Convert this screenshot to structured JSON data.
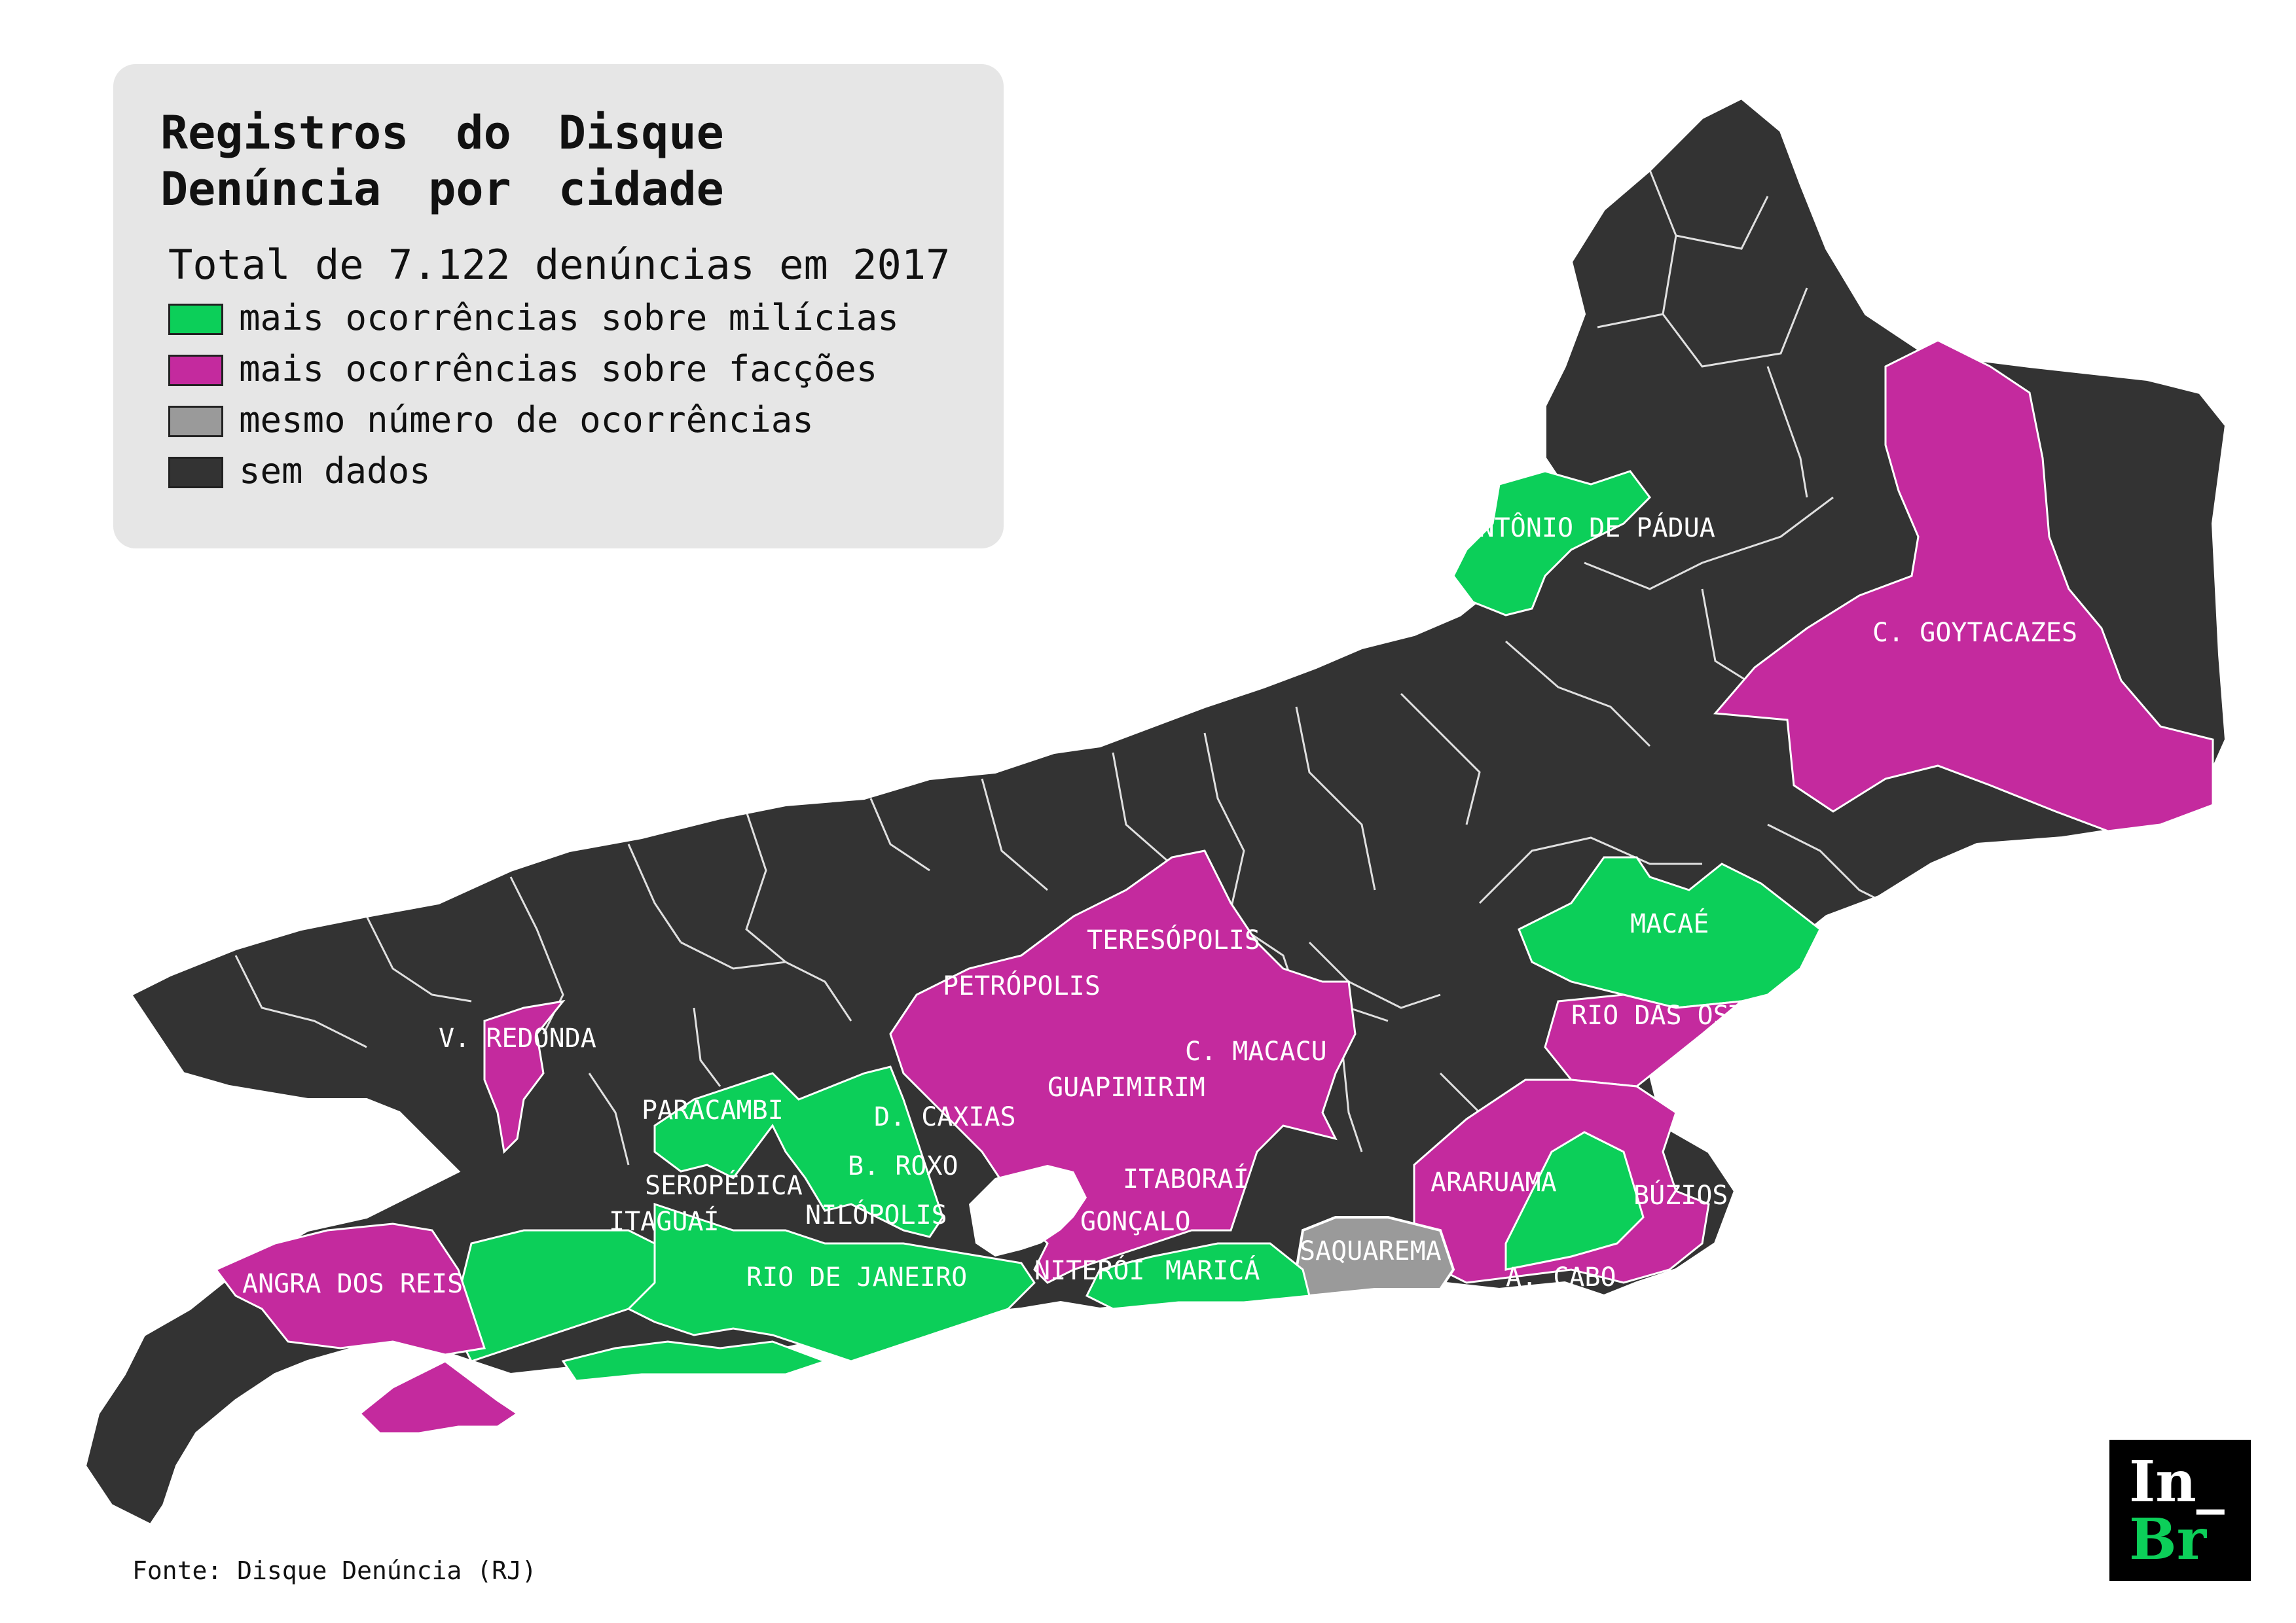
{
  "legend": {
    "title": "Registros do Disque\nDenúncia por cidade",
    "subtitle": "Total de 7.122 denúncias em 2017",
    "items": [
      {
        "label": "mais ocorrências sobre milícias",
        "color": "#0ccf59"
      },
      {
        "label": "mais ocorrências sobre facções",
        "color": "#c42a9e"
      },
      {
        "label": "mesmo número de ocorrências",
        "color": "#9a9a9a"
      },
      {
        "label": "sem dados",
        "color": "#333333"
      }
    ]
  },
  "colors": {
    "milicias": "#0ccf59",
    "faccoes": "#c42a9e",
    "empate": "#9a9a9a",
    "sem_dados": "#333333",
    "borders": "#ffffff"
  },
  "cities": [
    {
      "name": "SANTO ANTÔNIO DE PÁDUA",
      "category": "milicias"
    },
    {
      "name": "C. GOYTACAZES",
      "category": "faccoes"
    },
    {
      "name": "MACAÉ",
      "category": "milicias"
    },
    {
      "name": "RIO DAS OSTRAS",
      "category": "faccoes"
    },
    {
      "name": "TERESÓPOLIS",
      "category": "faccoes"
    },
    {
      "name": "PETRÓPOLIS",
      "category": "faccoes"
    },
    {
      "name": "C. MACACU",
      "category": "faccoes"
    },
    {
      "name": "V. REDONDA",
      "category": "faccoes"
    },
    {
      "name": "GUAPIMIRIM",
      "category": "faccoes"
    },
    {
      "name": "PARACAMBI",
      "category": "milicias"
    },
    {
      "name": "D. CAXIAS",
      "category": "milicias"
    },
    {
      "name": "B. ROXO",
      "category": "milicias"
    },
    {
      "name": "SEROPÉDICA",
      "category": "milicias"
    },
    {
      "name": "ITABORAÍ",
      "category": "faccoes"
    },
    {
      "name": "ARARUAMA",
      "category": "faccoes"
    },
    {
      "name": "BÚZIOS",
      "category": "faccoes"
    },
    {
      "name": "NILÓPOLIS",
      "category": "milicias"
    },
    {
      "name": "ITAGUAÍ",
      "category": "milicias"
    },
    {
      "name": "GONÇALO",
      "category": "faccoes"
    },
    {
      "name": "SAQUAREMA",
      "category": "empate"
    },
    {
      "name": "RIO DE JANEIRO",
      "category": "milicias"
    },
    {
      "name": "NITERÓI",
      "category": "faccoes"
    },
    {
      "name": "MARICÁ",
      "category": "milicias"
    },
    {
      "name": "A. CABO",
      "category": "milicias"
    },
    {
      "name": "ANGRA DOS REIS",
      "category": "faccoes"
    }
  ],
  "source": "Fonte: Disque Denúncia (RJ)",
  "logo": {
    "top": "In_",
    "bottom": "Br"
  }
}
